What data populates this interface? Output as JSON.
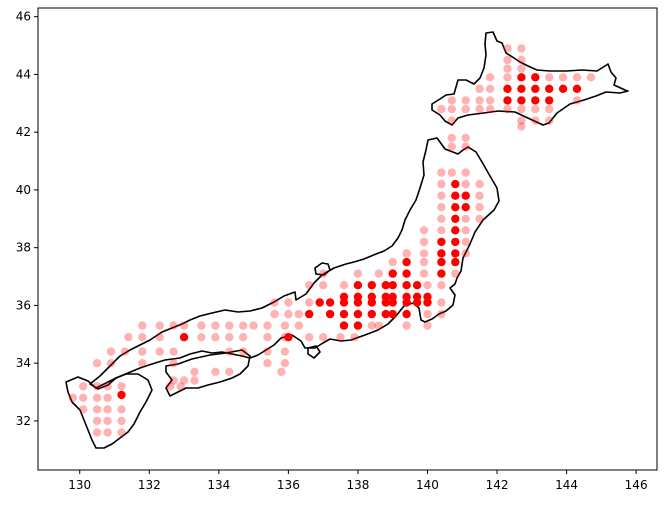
{
  "chart_data": {
    "type": "scatter",
    "title": "",
    "xlabel": "",
    "ylabel": "",
    "xlim": [
      128.8,
      146.6
    ],
    "ylim": [
      30.3,
      46.3
    ],
    "xticks": [
      130,
      132,
      134,
      136,
      138,
      140,
      142,
      144,
      146
    ],
    "yticks": [
      32,
      34,
      36,
      38,
      40,
      42,
      44,
      46
    ],
    "grid": false,
    "legend": "none",
    "colors": {
      "point": "#ff0000",
      "point_faint_opacity": 0.3,
      "coastline": "#000000"
    },
    "series": [
      {
        "marker": "circle",
        "opacity": 0.3,
        "points": [
          [
            142.3,
            44.9
          ],
          [
            142.7,
            44.9
          ],
          [
            142.3,
            44.5
          ],
          [
            142.7,
            44.5
          ],
          [
            142.3,
            44.2
          ],
          [
            142.7,
            44.2
          ],
          [
            141.8,
            43.9
          ],
          [
            142.3,
            43.9
          ],
          [
            143.5,
            43.9
          ],
          [
            143.9,
            43.9
          ],
          [
            144.3,
            43.9
          ],
          [
            144.7,
            43.9
          ],
          [
            141.5,
            43.5
          ],
          [
            141.8,
            43.5
          ],
          [
            140.7,
            43.1
          ],
          [
            141.1,
            43.1
          ],
          [
            141.5,
            43.1
          ],
          [
            141.8,
            43.1
          ],
          [
            144.3,
            43.1
          ],
          [
            140.4,
            42.8
          ],
          [
            140.7,
            42.8
          ],
          [
            141.1,
            42.8
          ],
          [
            141.5,
            42.8
          ],
          [
            141.8,
            42.8
          ],
          [
            142.3,
            42.8
          ],
          [
            142.7,
            42.8
          ],
          [
            143.1,
            42.8
          ],
          [
            143.5,
            42.8
          ],
          [
            140.7,
            42.4
          ],
          [
            142.7,
            42.4
          ],
          [
            143.1,
            42.4
          ],
          [
            143.5,
            42.4
          ],
          [
            142.7,
            42.2
          ],
          [
            140.7,
            41.8
          ],
          [
            141.1,
            41.8
          ],
          [
            140.7,
            41.5
          ],
          [
            141.1,
            41.5
          ],
          [
            140.4,
            40.6
          ],
          [
            140.7,
            40.6
          ],
          [
            141.1,
            40.6
          ],
          [
            140.4,
            40.2
          ],
          [
            141.1,
            40.2
          ],
          [
            141.5,
            40.2
          ],
          [
            140.4,
            39.8
          ],
          [
            141.5,
            39.8
          ],
          [
            140.4,
            39.4
          ],
          [
            141.5,
            39.4
          ],
          [
            140.4,
            39.0
          ],
          [
            141.1,
            39.0
          ],
          [
            141.5,
            39.0
          ],
          [
            139.9,
            38.6
          ],
          [
            140.4,
            38.6
          ],
          [
            141.1,
            38.6
          ],
          [
            139.9,
            38.2
          ],
          [
            141.1,
            38.2
          ],
          [
            139.4,
            37.8
          ],
          [
            139.9,
            37.8
          ],
          [
            141.1,
            37.8
          ],
          [
            139.0,
            37.5
          ],
          [
            139.9,
            37.5
          ],
          [
            137.0,
            37.1
          ],
          [
            138.0,
            37.1
          ],
          [
            138.6,
            37.1
          ],
          [
            139.9,
            37.1
          ],
          [
            140.8,
            37.1
          ],
          [
            136.6,
            36.7
          ],
          [
            137.0,
            36.7
          ],
          [
            137.6,
            36.7
          ],
          [
            140.0,
            36.7
          ],
          [
            140.4,
            36.7
          ],
          [
            135.6,
            36.1
          ],
          [
            136.0,
            36.1
          ],
          [
            136.6,
            36.1
          ],
          [
            140.4,
            36.1
          ],
          [
            135.6,
            35.7
          ],
          [
            136.0,
            35.7
          ],
          [
            136.3,
            35.7
          ],
          [
            140.0,
            35.7
          ],
          [
            140.4,
            35.7
          ],
          [
            131.8,
            35.3
          ],
          [
            132.3,
            35.3
          ],
          [
            132.7,
            35.3
          ],
          [
            133.0,
            35.3
          ],
          [
            133.5,
            35.3
          ],
          [
            133.9,
            35.3
          ],
          [
            134.3,
            35.3
          ],
          [
            134.7,
            35.3
          ],
          [
            135.0,
            35.3
          ],
          [
            135.4,
            35.3
          ],
          [
            135.9,
            35.3
          ],
          [
            136.3,
            35.3
          ],
          [
            138.4,
            35.3
          ],
          [
            138.6,
            35.3
          ],
          [
            139.4,
            35.3
          ],
          [
            140.0,
            35.3
          ],
          [
            131.4,
            34.9
          ],
          [
            131.8,
            34.9
          ],
          [
            132.3,
            34.9
          ],
          [
            133.5,
            34.9
          ],
          [
            133.9,
            34.9
          ],
          [
            134.3,
            34.9
          ],
          [
            134.7,
            34.9
          ],
          [
            135.4,
            34.9
          ],
          [
            135.9,
            34.9
          ],
          [
            136.6,
            34.9
          ],
          [
            137.0,
            34.9
          ],
          [
            137.5,
            34.9
          ],
          [
            137.9,
            34.9
          ],
          [
            130.9,
            34.4
          ],
          [
            131.3,
            34.4
          ],
          [
            131.8,
            34.4
          ],
          [
            132.3,
            34.4
          ],
          [
            132.7,
            34.4
          ],
          [
            134.3,
            34.4
          ],
          [
            134.7,
            34.4
          ],
          [
            135.4,
            34.4
          ],
          [
            135.9,
            34.4
          ],
          [
            130.5,
            34.0
          ],
          [
            130.9,
            34.0
          ],
          [
            131.8,
            34.0
          ],
          [
            132.7,
            34.0
          ],
          [
            135.4,
            34.0
          ],
          [
            135.9,
            34.0
          ],
          [
            133.3,
            33.7
          ],
          [
            133.9,
            33.7
          ],
          [
            134.3,
            33.7
          ],
          [
            135.8,
            33.7
          ],
          [
            132.7,
            33.4
          ],
          [
            133.0,
            33.4
          ],
          [
            133.3,
            33.4
          ],
          [
            130.1,
            33.2
          ],
          [
            130.5,
            33.2
          ],
          [
            130.8,
            33.2
          ],
          [
            131.2,
            33.2
          ],
          [
            132.6,
            33.2
          ],
          [
            132.9,
            33.2
          ],
          [
            130.1,
            32.8
          ],
          [
            130.5,
            32.8
          ],
          [
            130.8,
            32.8
          ],
          [
            129.8,
            32.8
          ],
          [
            130.1,
            32.4
          ],
          [
            130.5,
            32.4
          ],
          [
            130.8,
            32.4
          ],
          [
            131.2,
            32.4
          ],
          [
            130.5,
            32.0
          ],
          [
            130.8,
            32.0
          ],
          [
            131.2,
            32.0
          ],
          [
            130.5,
            31.6
          ],
          [
            130.8,
            31.6
          ],
          [
            131.2,
            31.6
          ]
        ]
      },
      {
        "marker": "circle",
        "opacity": 1.0,
        "points": [
          [
            142.7,
            43.9
          ],
          [
            143.1,
            43.9
          ],
          [
            142.3,
            43.5
          ],
          [
            142.7,
            43.5
          ],
          [
            143.1,
            43.5
          ],
          [
            143.5,
            43.5
          ],
          [
            143.9,
            43.5
          ],
          [
            144.3,
            43.5
          ],
          [
            142.3,
            43.1
          ],
          [
            142.7,
            43.1
          ],
          [
            143.1,
            43.1
          ],
          [
            143.5,
            43.1
          ],
          [
            140.8,
            40.2
          ],
          [
            140.8,
            39.8
          ],
          [
            141.1,
            39.8
          ],
          [
            140.8,
            39.4
          ],
          [
            141.1,
            39.4
          ],
          [
            140.8,
            39.0
          ],
          [
            140.8,
            38.6
          ],
          [
            140.4,
            38.2
          ],
          [
            140.8,
            38.2
          ],
          [
            140.4,
            37.8
          ],
          [
            140.8,
            37.8
          ],
          [
            139.4,
            37.5
          ],
          [
            140.4,
            37.5
          ],
          [
            140.8,
            37.5
          ],
          [
            139.0,
            37.1
          ],
          [
            139.4,
            37.1
          ],
          [
            140.4,
            37.1
          ],
          [
            138.0,
            36.7
          ],
          [
            138.4,
            36.7
          ],
          [
            138.8,
            36.7
          ],
          [
            139.0,
            36.7
          ],
          [
            139.4,
            36.7
          ],
          [
            139.7,
            36.7
          ],
          [
            137.6,
            36.3
          ],
          [
            138.0,
            36.3
          ],
          [
            138.4,
            36.3
          ],
          [
            138.8,
            36.3
          ],
          [
            139.0,
            36.3
          ],
          [
            139.4,
            36.3
          ],
          [
            139.7,
            36.3
          ],
          [
            140.0,
            36.3
          ],
          [
            136.9,
            36.1
          ],
          [
            137.2,
            36.1
          ],
          [
            137.6,
            36.1
          ],
          [
            138.0,
            36.1
          ],
          [
            138.4,
            36.1
          ],
          [
            138.8,
            36.1
          ],
          [
            139.0,
            36.1
          ],
          [
            139.4,
            36.1
          ],
          [
            139.7,
            36.1
          ],
          [
            140.0,
            36.1
          ],
          [
            136.6,
            35.7
          ],
          [
            137.2,
            35.7
          ],
          [
            137.6,
            35.7
          ],
          [
            138.0,
            35.7
          ],
          [
            138.4,
            35.7
          ],
          [
            138.8,
            35.7
          ],
          [
            139.0,
            35.7
          ],
          [
            139.4,
            35.7
          ],
          [
            137.6,
            35.3
          ],
          [
            138.0,
            35.3
          ],
          [
            136.0,
            34.9
          ],
          [
            133.0,
            34.9
          ],
          [
            131.2,
            32.9
          ]
        ]
      }
    ]
  }
}
